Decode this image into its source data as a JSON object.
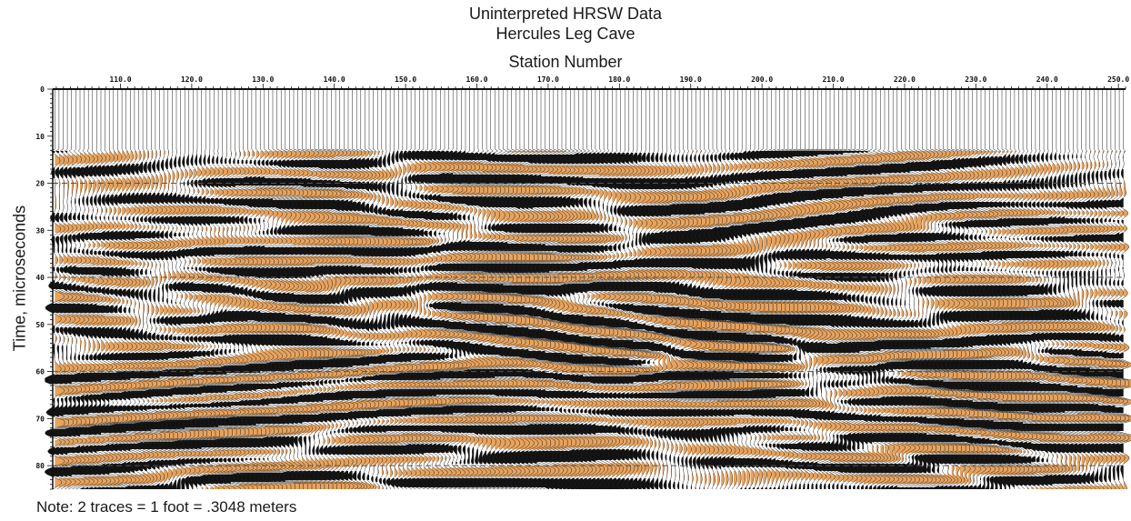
{
  "chart_data": {
    "type": "seismic-wiggle",
    "title": "Uninterpreted HRSW Data",
    "subtitle": "Hercules Leg Cave",
    "xlabel": "Station Number",
    "ylabel": "Time, microseconds",
    "xlim": [
      100.5,
      251
    ],
    "ylim": [
      0,
      85
    ],
    "x_ticks": [
      "110.0",
      "120.0",
      "130.0",
      "140.0",
      "150.0",
      "160.0",
      "170.0",
      "180.0",
      "190.0",
      "200.0",
      "210.0",
      "220.0",
      "230.0",
      "240.0",
      "250.0"
    ],
    "x_tick_values": [
      110,
      120,
      130,
      140,
      150,
      160,
      170,
      180,
      190,
      200,
      210,
      220,
      230,
      240,
      250
    ],
    "y_ticks": [
      "0",
      "10",
      "20",
      "30",
      "40",
      "50",
      "60",
      "70",
      "80"
    ],
    "y_tick_values": [
      0,
      10,
      20,
      30,
      40,
      50,
      60,
      70,
      80
    ],
    "dashed_gridlines_y": [
      20,
      40,
      60,
      80
    ],
    "first_break_time": 13,
    "colors": {
      "positive_fill": "#e8a35c",
      "negative_fill": "#111111",
      "trace_line": "#222222",
      "grid": "#555555"
    }
  },
  "note": "Note: 2 traces = 1 foot = .3048 meters"
}
